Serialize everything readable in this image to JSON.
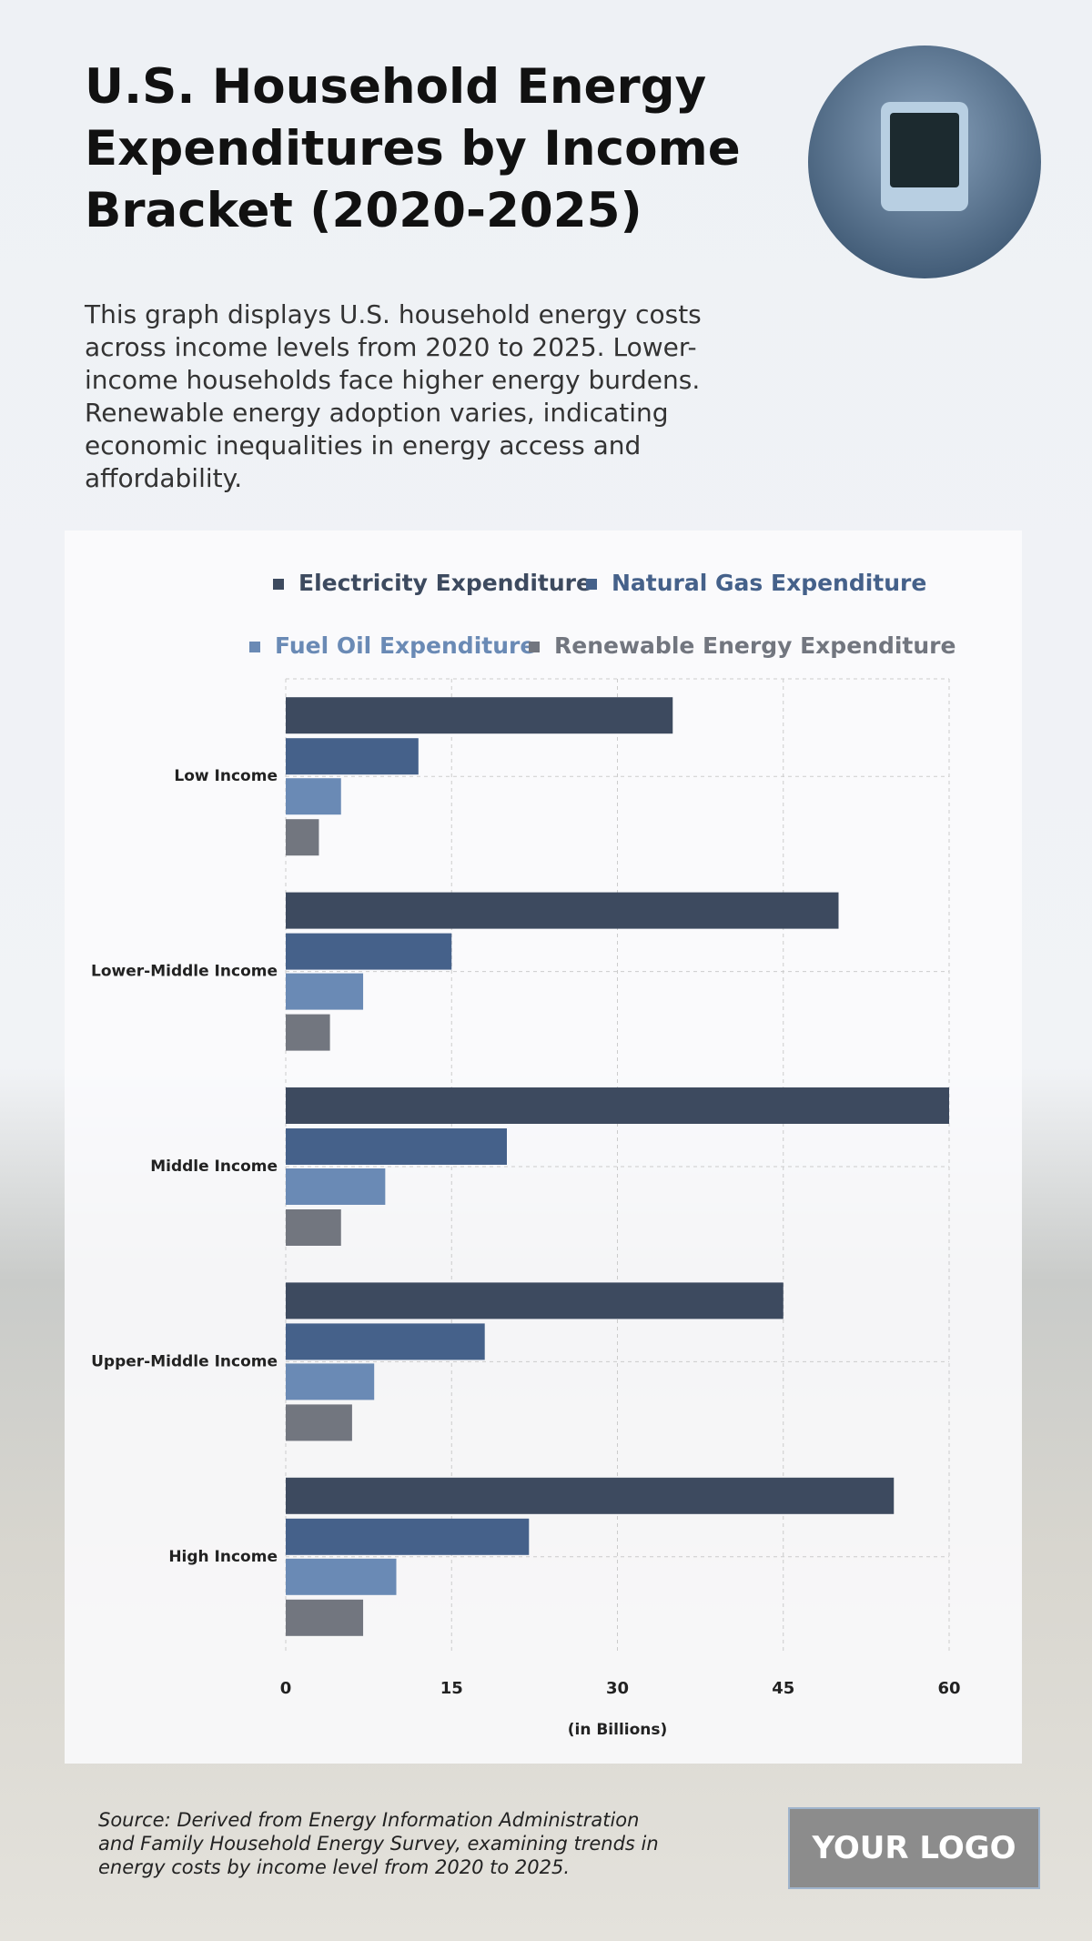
{
  "header": {
    "title": "U.S. Household Energy Expenditures by Income Bracket (2020-2025)",
    "description": "This graph displays U.S. household energy costs across income levels from 2020 to 2025. Lower-income households face higher energy burdens. Renewable energy adoption varies, indicating economic inequalities in energy access and affordability."
  },
  "chart_data": {
    "type": "bar",
    "orientation": "horizontal",
    "categories": [
      "Low Income",
      "Lower-Middle Income",
      "Middle Income",
      "Upper-Middle Income",
      "High Income"
    ],
    "series": [
      {
        "name": "Electricity Expenditure",
        "color": "#3d4a5f",
        "values": [
          35,
          50,
          60,
          45,
          55
        ]
      },
      {
        "name": "Natural Gas Expenditure",
        "color": "#45618a",
        "values": [
          12,
          15,
          20,
          18,
          22
        ]
      },
      {
        "name": "Fuel Oil Expenditure",
        "color": "#6a8ab5",
        "values": [
          5,
          7,
          9,
          8,
          10
        ]
      },
      {
        "name": "Renewable Energy Expenditure",
        "color": "#72767f",
        "values": [
          3,
          4,
          5,
          6,
          7
        ]
      }
    ],
    "xlabel": "(in Billions)",
    "xlim": [
      0,
      60
    ],
    "xticks": [
      0,
      15,
      30,
      45,
      60
    ],
    "grid": true,
    "legend_position": "top"
  },
  "footer": {
    "source": "Source: Derived from Energy Information Administration and Family Household Energy Survey, examining trends in energy costs by income level from 2020 to 2025.",
    "logo": "YOUR LOGO"
  }
}
